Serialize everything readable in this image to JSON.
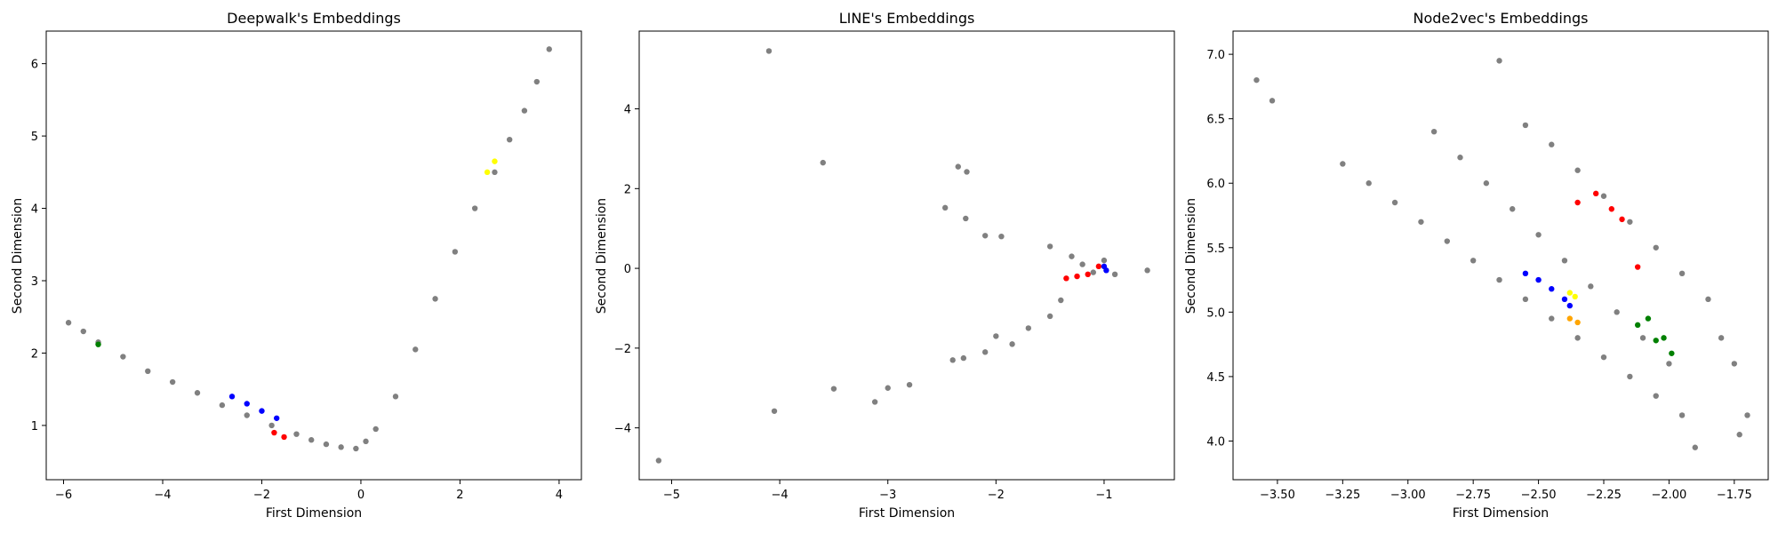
{
  "chart_data": [
    {
      "type": "scatter",
      "title": "Deepwalk's Embeddings",
      "xlabel": "First Dimension",
      "ylabel": "Second Dimension",
      "xlim": [
        -6.35,
        4.45
      ],
      "ylim": [
        0.25,
        6.45
      ],
      "xticks": [
        -6,
        -4,
        -2,
        0,
        2,
        4
      ],
      "yticks": [
        1,
        2,
        3,
        4,
        5,
        6
      ],
      "xtick_labels": [
        "−6",
        "−4",
        "−2",
        "0",
        "2",
        "4"
      ],
      "ytick_labels": [
        "1",
        "2",
        "3",
        "4",
        "5",
        "6"
      ],
      "grid": false,
      "legend": "none",
      "background_series_color": "#808080",
      "highlight_colors": [
        "#0000ff",
        "#ff0000",
        "#008000",
        "#ffff00"
      ],
      "background_series": [
        {
          "x": -5.9,
          "y": 2.42
        },
        {
          "x": -5.6,
          "y": 2.3
        },
        {
          "x": -5.3,
          "y": 2.15
        },
        {
          "x": -4.8,
          "y": 1.95
        },
        {
          "x": -4.3,
          "y": 1.75
        },
        {
          "x": -3.8,
          "y": 1.6
        },
        {
          "x": -3.3,
          "y": 1.45
        },
        {
          "x": -2.8,
          "y": 1.28
        },
        {
          "x": -2.3,
          "y": 1.14
        },
        {
          "x": -1.8,
          "y": 1.0
        },
        {
          "x": -1.3,
          "y": 0.88
        },
        {
          "x": -1.0,
          "y": 0.8
        },
        {
          "x": -0.7,
          "y": 0.74
        },
        {
          "x": -0.4,
          "y": 0.7
        },
        {
          "x": -0.1,
          "y": 0.68
        },
        {
          "x": 0.1,
          "y": 0.78
        },
        {
          "x": 0.3,
          "y": 0.95
        },
        {
          "x": 0.7,
          "y": 1.4
        },
        {
          "x": 1.1,
          "y": 2.05
        },
        {
          "x": 1.5,
          "y": 2.75
        },
        {
          "x": 1.9,
          "y": 3.4
        },
        {
          "x": 2.3,
          "y": 4.0
        },
        {
          "x": 2.7,
          "y": 4.5
        },
        {
          "x": 3.0,
          "y": 4.95
        },
        {
          "x": 3.3,
          "y": 5.35
        },
        {
          "x": 3.55,
          "y": 5.75
        },
        {
          "x": 3.8,
          "y": 6.2
        }
      ],
      "highlight_series": [
        {
          "color": "#0000ff",
          "points": [
            {
              "x": -2.6,
              "y": 1.4
            },
            {
              "x": -2.3,
              "y": 1.3
            },
            {
              "x": -2.0,
              "y": 1.2
            },
            {
              "x": -1.7,
              "y": 1.1
            }
          ]
        },
        {
          "color": "#ff0000",
          "points": [
            {
              "x": -1.75,
              "y": 0.9
            },
            {
              "x": -1.55,
              "y": 0.84
            }
          ]
        },
        {
          "color": "#008000",
          "points": [
            {
              "x": -5.3,
              "y": 2.12
            }
          ]
        },
        {
          "color": "#ffff00",
          "points": [
            {
              "x": 2.55,
              "y": 4.5
            },
            {
              "x": 2.7,
              "y": 4.65
            }
          ]
        }
      ]
    },
    {
      "type": "scatter",
      "title": "LINE's Embeddings",
      "xlabel": "First Dimension",
      "ylabel": "Second Dimension",
      "xlim": [
        -5.3,
        -0.35
      ],
      "ylim": [
        -5.3,
        5.95
      ],
      "xticks": [
        -5,
        -4,
        -3,
        -2,
        -1
      ],
      "yticks": [
        -4,
        -2,
        0,
        2,
        4
      ],
      "xtick_labels": [
        "−5",
        "−4",
        "−3",
        "−2",
        "−1"
      ],
      "ytick_labels": [
        "−4",
        "−2",
        "0",
        "2",
        "4"
      ],
      "grid": false,
      "legend": "none",
      "background_series_color": "#808080",
      "highlight_colors": [
        "#ff0000",
        "#0000ff"
      ],
      "background_series": [
        {
          "x": -4.1,
          "y": 5.45
        },
        {
          "x": -3.6,
          "y": 2.65
        },
        {
          "x": -2.35,
          "y": 2.55
        },
        {
          "x": -2.27,
          "y": 2.42
        },
        {
          "x": -2.47,
          "y": 1.52
        },
        {
          "x": -2.28,
          "y": 1.25
        },
        {
          "x": -2.1,
          "y": 0.82
        },
        {
          "x": -1.95,
          "y": 0.8
        },
        {
          "x": -1.5,
          "y": 0.55
        },
        {
          "x": -1.3,
          "y": 0.3
        },
        {
          "x": -1.2,
          "y": 0.1
        },
        {
          "x": -1.1,
          "y": -0.1
        },
        {
          "x": -1.0,
          "y": 0.2
        },
        {
          "x": -0.9,
          "y": -0.15
        },
        {
          "x": -0.6,
          "y": -0.05
        },
        {
          "x": -1.4,
          "y": -0.8
        },
        {
          "x": -1.5,
          "y": -1.2
        },
        {
          "x": -1.7,
          "y": -1.5
        },
        {
          "x": -1.85,
          "y": -1.9
        },
        {
          "x": -2.0,
          "y": -1.7
        },
        {
          "x": -2.1,
          "y": -2.1
        },
        {
          "x": -2.3,
          "y": -2.25
        },
        {
          "x": -2.4,
          "y": -2.3
        },
        {
          "x": -2.8,
          "y": -2.92
        },
        {
          "x": -3.0,
          "y": -3.0
        },
        {
          "x": -3.12,
          "y": -3.35
        },
        {
          "x": -3.5,
          "y": -3.02
        },
        {
          "x": -4.05,
          "y": -3.58
        },
        {
          "x": -5.12,
          "y": -4.82
        }
      ],
      "highlight_series": [
        {
          "color": "#ff0000",
          "points": [
            {
              "x": -1.35,
              "y": -0.25
            },
            {
              "x": -1.25,
              "y": -0.2
            },
            {
              "x": -1.15,
              "y": -0.15
            },
            {
              "x": -1.05,
              "y": 0.05
            }
          ]
        },
        {
          "color": "#0000ff",
          "points": [
            {
              "x": -1.0,
              "y": 0.05
            },
            {
              "x": -0.98,
              "y": -0.05
            }
          ]
        }
      ]
    },
    {
      "type": "scatter",
      "title": "Node2vec's Embeddings",
      "xlabel": "First Dimension",
      "ylabel": "Second Dimension",
      "xlim": [
        -3.67,
        -1.62
      ],
      "ylim": [
        3.7,
        7.18
      ],
      "xticks": [
        -3.5,
        -3.25,
        -3.0,
        -2.75,
        -2.5,
        -2.25,
        -2.0,
        -1.75
      ],
      "yticks": [
        4.0,
        4.5,
        5.0,
        5.5,
        6.0,
        6.5,
        7.0
      ],
      "xtick_labels": [
        "−3.50",
        "−3.25",
        "−3.00",
        "−2.75",
        "−2.50",
        "−2.25",
        "−2.00",
        "−1.75"
      ],
      "ytick_labels": [
        "4.0",
        "4.5",
        "5.0",
        "5.5",
        "6.0",
        "6.5",
        "7.0"
      ],
      "grid": false,
      "legend": "none",
      "background_series_color": "#808080",
      "highlight_colors": [
        "#ff0000",
        "#0000ff",
        "#ffff00",
        "#ffa500",
        "#008000"
      ],
      "background_series": [
        {
          "x": -3.58,
          "y": 6.8
        },
        {
          "x": -3.52,
          "y": 6.64
        },
        {
          "x": -3.25,
          "y": 6.15
        },
        {
          "x": -3.15,
          "y": 6.0
        },
        {
          "x": -3.05,
          "y": 5.85
        },
        {
          "x": -2.95,
          "y": 5.7
        },
        {
          "x": -2.85,
          "y": 5.55
        },
        {
          "x": -2.75,
          "y": 5.4
        },
        {
          "x": -2.65,
          "y": 5.25
        },
        {
          "x": -2.55,
          "y": 5.1
        },
        {
          "x": -2.45,
          "y": 4.95
        },
        {
          "x": -2.35,
          "y": 4.8
        },
        {
          "x": -2.25,
          "y": 4.65
        },
        {
          "x": -2.15,
          "y": 4.5
        },
        {
          "x": -2.05,
          "y": 4.35
        },
        {
          "x": -1.95,
          "y": 4.2
        },
        {
          "x": -1.9,
          "y": 3.95
        },
        {
          "x": -2.9,
          "y": 6.4
        },
        {
          "x": -2.8,
          "y": 6.2
        },
        {
          "x": -2.7,
          "y": 6.0
        },
        {
          "x": -2.6,
          "y": 5.8
        },
        {
          "x": -2.5,
          "y": 5.6
        },
        {
          "x": -2.4,
          "y": 5.4
        },
        {
          "x": -2.3,
          "y": 5.2
        },
        {
          "x": -2.2,
          "y": 5.0
        },
        {
          "x": -2.1,
          "y": 4.8
        },
        {
          "x": -2.0,
          "y": 4.6
        },
        {
          "x": -2.65,
          "y": 6.95
        },
        {
          "x": -2.55,
          "y": 6.45
        },
        {
          "x": -2.45,
          "y": 6.3
        },
        {
          "x": -2.35,
          "y": 6.1
        },
        {
          "x": -2.25,
          "y": 5.9
        },
        {
          "x": -2.15,
          "y": 5.7
        },
        {
          "x": -2.05,
          "y": 5.5
        },
        {
          "x": -1.95,
          "y": 5.3
        },
        {
          "x": -1.85,
          "y": 5.1
        },
        {
          "x": -1.8,
          "y": 4.8
        },
        {
          "x": -1.75,
          "y": 4.6
        },
        {
          "x": -1.7,
          "y": 4.2
        },
        {
          "x": -1.73,
          "y": 4.05
        }
      ],
      "highlight_series": [
        {
          "color": "#ff0000",
          "points": [
            {
              "x": -2.35,
              "y": 5.85
            },
            {
              "x": -2.28,
              "y": 5.92
            },
            {
              "x": -2.22,
              "y": 5.8
            },
            {
              "x": -2.18,
              "y": 5.72
            },
            {
              "x": -2.12,
              "y": 5.35
            }
          ]
        },
        {
          "color": "#0000ff",
          "points": [
            {
              "x": -2.55,
              "y": 5.3
            },
            {
              "x": -2.5,
              "y": 5.25
            },
            {
              "x": -2.45,
              "y": 5.18
            },
            {
              "x": -2.4,
              "y": 5.1
            },
            {
              "x": -2.38,
              "y": 5.05
            }
          ]
        },
        {
          "color": "#ffff00",
          "points": [
            {
              "x": -2.38,
              "y": 5.15
            },
            {
              "x": -2.36,
              "y": 5.12
            }
          ]
        },
        {
          "color": "#ffa500",
          "points": [
            {
              "x": -2.38,
              "y": 4.95
            },
            {
              "x": -2.35,
              "y": 4.92
            }
          ]
        },
        {
          "color": "#008000",
          "points": [
            {
              "x": -2.12,
              "y": 4.9
            },
            {
              "x": -2.08,
              "y": 4.95
            },
            {
              "x": -2.05,
              "y": 4.78
            },
            {
              "x": -2.02,
              "y": 4.8
            },
            {
              "x": -1.99,
              "y": 4.68
            }
          ]
        }
      ]
    }
  ]
}
